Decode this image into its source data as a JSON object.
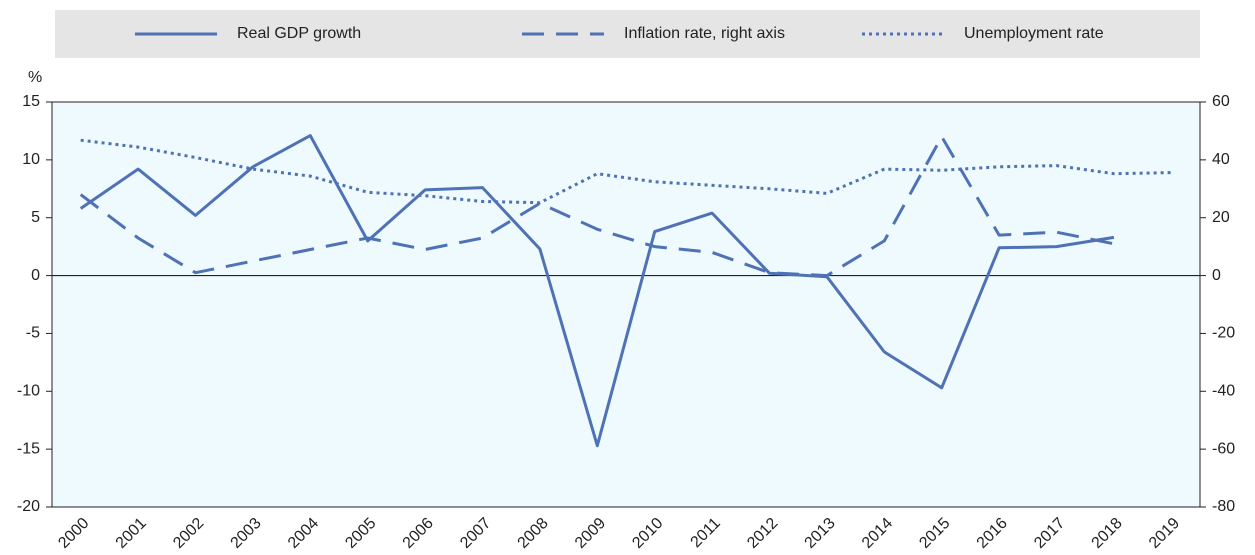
{
  "chart_data": {
    "type": "line",
    "y_label": "%",
    "categories": [
      "2000",
      "2001",
      "2002",
      "2003",
      "2004",
      "2005",
      "2006",
      "2007",
      "2008",
      "2009",
      "2010",
      "2011",
      "2012",
      "2013",
      "2014",
      "2015",
      "2016",
      "2017",
      "2018",
      "2019"
    ],
    "series": [
      {
        "name": "Real GDP growth",
        "color": "#4e72b5",
        "style": "solid",
        "values": [
          5.8,
          9.2,
          5.2,
          9.4,
          12.1,
          3.0,
          7.4,
          7.6,
          2.3,
          -14.7,
          3.8,
          5.4,
          0.2,
          -0.1,
          -6.6,
          -9.7,
          2.4,
          2.5,
          3.3,
          null
        ]
      },
      {
        "name": "Inflation rate, right axis",
        "color": "#4e72b5",
        "style": "dashed",
        "axis": "y2",
        "values": [
          28,
          13,
          1,
          5,
          9,
          13,
          9,
          13,
          25,
          16,
          10,
          8,
          1,
          0,
          12,
          48,
          14,
          15,
          11,
          null
        ]
      },
      {
        "name": "Unemployment rate",
        "color": "#4e72b5",
        "style": "dotted",
        "values": [
          11.7,
          11.1,
          10.2,
          9.2,
          8.6,
          7.2,
          6.9,
          6.4,
          6.3,
          8.8,
          8.1,
          7.8,
          7.5,
          7.1,
          9.2,
          9.1,
          9.4,
          9.5,
          8.8,
          8.9
        ]
      }
    ],
    "ylim": [
      -20,
      15
    ],
    "yticks": [
      -20,
      -15,
      -10,
      -5,
      0,
      5,
      10,
      15
    ],
    "y2lim": [
      -80,
      60
    ],
    "y2ticks": [
      -80,
      -60,
      -40,
      -20,
      0,
      20,
      40,
      60
    ],
    "legend": "top"
  }
}
